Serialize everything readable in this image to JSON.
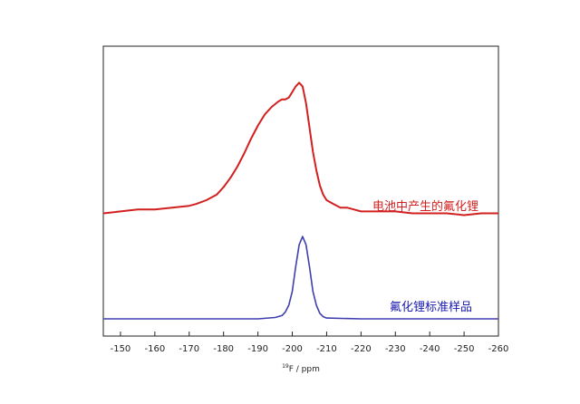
{
  "chart_data": {
    "type": "line",
    "xlabel": "F / ppm",
    "xlabel_superscript": "19",
    "xlim": [
      -145,
      -260
    ],
    "x_ticks": [
      -150,
      -160,
      -170,
      -180,
      -190,
      -200,
      -210,
      -220,
      -230,
      -240,
      -250,
      -260
    ],
    "x_tick_labels": [
      "-150",
      "-160",
      "-170",
      "-180",
      "-190",
      "-200",
      "-210",
      "-220",
      "-230",
      "-240",
      "-250",
      "-260"
    ],
    "y_axis_visible": false,
    "grid": false,
    "series": [
      {
        "name": "电池中产生的氟化锂",
        "color": "#d21f1f",
        "x": [
          -145,
          -150,
          -155,
          -160,
          -165,
          -170,
          -172,
          -175,
          -178,
          -180,
          -182,
          -184,
          -186,
          -188,
          -190,
          -192,
          -194,
          -196,
          -197,
          -198,
          -199,
          -200,
          -201,
          -202,
          -203,
          -204,
          -205,
          -206,
          -207,
          -208,
          -209,
          -210,
          -212,
          -214,
          -216,
          -218,
          -220,
          -225,
          -230,
          -235,
          -240,
          -245,
          -250,
          -255,
          -260
        ],
        "y": [
          0.09,
          0.1,
          0.11,
          0.11,
          0.12,
          0.13,
          0.14,
          0.16,
          0.19,
          0.23,
          0.28,
          0.34,
          0.41,
          0.49,
          0.56,
          0.62,
          0.66,
          0.69,
          0.7,
          0.7,
          0.71,
          0.74,
          0.77,
          0.79,
          0.77,
          0.68,
          0.55,
          0.42,
          0.32,
          0.24,
          0.19,
          0.16,
          0.14,
          0.12,
          0.12,
          0.11,
          0.1,
          0.1,
          0.1,
          0.09,
          0.09,
          0.09,
          0.08,
          0.09,
          0.09
        ]
      },
      {
        "name": "氟化锂标准样品",
        "color": "#3f3fb0",
        "x": [
          -145,
          -160,
          -180,
          -190,
          -195,
          -197,
          -198,
          -199,
          -200,
          -201,
          -202,
          -203,
          -204,
          -205,
          -206,
          -207,
          -208,
          -209,
          -210,
          -220,
          -240,
          -260
        ],
        "y": [
          0.0,
          0.0,
          0.0,
          0.0,
          0.005,
          0.012,
          0.025,
          0.05,
          0.1,
          0.19,
          0.27,
          0.3,
          0.27,
          0.19,
          0.1,
          0.05,
          0.02,
          0.008,
          0.003,
          0.0,
          0.0,
          0.0
        ]
      }
    ],
    "annotations": [
      {
        "text": "电池中产生的氟化锂",
        "color": "#d21f1f"
      },
      {
        "text": "氟化锂标准样品",
        "color": "#1a1ab0"
      }
    ]
  }
}
